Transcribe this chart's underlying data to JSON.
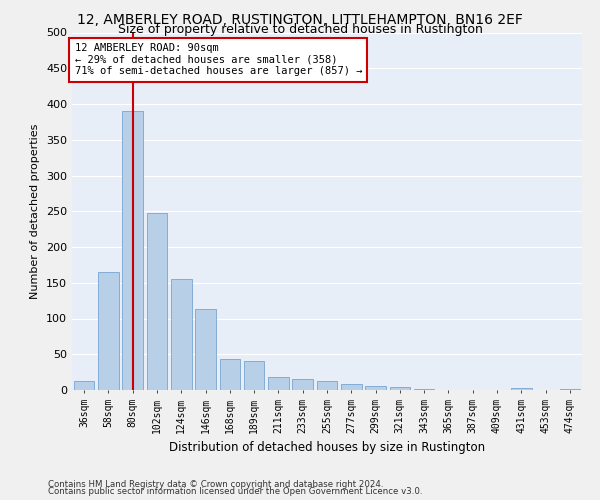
{
  "title": "12, AMBERLEY ROAD, RUSTINGTON, LITTLEHAMPTON, BN16 2EF",
  "subtitle": "Size of property relative to detached houses in Rustington",
  "xlabel": "Distribution of detached houses by size in Rustington",
  "ylabel": "Number of detached properties",
  "categories": [
    "36sqm",
    "58sqm",
    "80sqm",
    "102sqm",
    "124sqm",
    "146sqm",
    "168sqm",
    "189sqm",
    "211sqm",
    "233sqm",
    "255sqm",
    "277sqm",
    "299sqm",
    "321sqm",
    "343sqm",
    "365sqm",
    "387sqm",
    "409sqm",
    "431sqm",
    "453sqm",
    "474sqm"
  ],
  "values": [
    12,
    165,
    390,
    248,
    155,
    113,
    43,
    40,
    18,
    15,
    13,
    8,
    6,
    4,
    2,
    0,
    0,
    0,
    3,
    0,
    2
  ],
  "bar_color": "#b8cfe8",
  "bar_edge_color": "#6699cc",
  "vline_x": 2,
  "vline_color": "#cc0000",
  "annotation_text": "12 AMBERLEY ROAD: 90sqm\n← 29% of detached houses are smaller (358)\n71% of semi-detached houses are larger (857) →",
  "annotation_box_color": "#ffffff",
  "annotation_box_edge": "#cc0000",
  "footer_line1": "Contains HM Land Registry data © Crown copyright and database right 2024.",
  "footer_line2": "Contains public sector information licensed under the Open Government Licence v3.0.",
  "ylim": [
    0,
    500
  ],
  "yticks": [
    0,
    50,
    100,
    150,
    200,
    250,
    300,
    350,
    400,
    450,
    500
  ],
  "bg_color": "#e8eef8",
  "fig_bg_color": "#f0f0f0",
  "grid_color": "#ffffff",
  "title_fontsize": 10,
  "subtitle_fontsize": 9,
  "xlabel_fontsize": 8.5,
  "ylabel_fontsize": 8
}
